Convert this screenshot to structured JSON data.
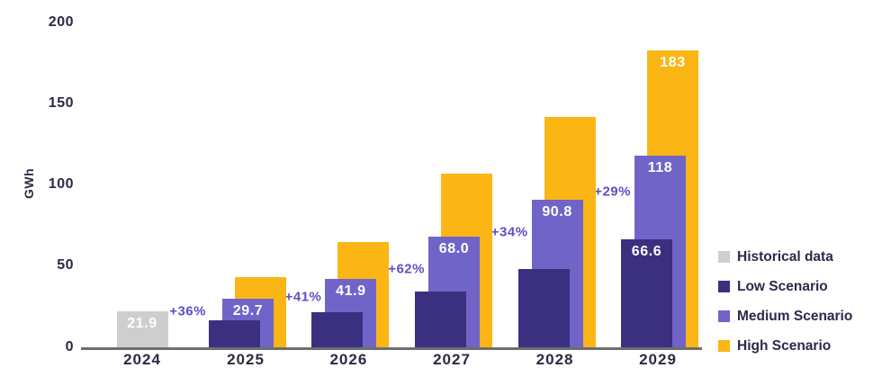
{
  "chart_data": {
    "type": "bar",
    "title": "",
    "ylabel": "GWh",
    "xlabel": "",
    "ylim": [
      0,
      200
    ],
    "yticks": [
      0,
      50,
      100,
      150,
      200
    ],
    "grid": false,
    "legend_position": "bottom-right",
    "categories": [
      "2024",
      "2025",
      "2026",
      "2027",
      "2028",
      "2029"
    ],
    "series": [
      {
        "name": "Historical data",
        "color": "#cecece",
        "values": [
          21.9,
          null,
          null,
          null,
          null,
          null
        ],
        "labels": [
          "21.9",
          null,
          null,
          null,
          null,
          null
        ]
      },
      {
        "name": "Low Scenario",
        "color": "#3b2f7f",
        "values": [
          null,
          16.5,
          21.5,
          34.5,
          48,
          66.6
        ],
        "labels": [
          null,
          null,
          null,
          null,
          null,
          "66.6"
        ]
      },
      {
        "name": "Medium Scenario",
        "color": "#7164c9",
        "values": [
          null,
          29.7,
          41.9,
          68.0,
          90.8,
          118
        ],
        "labels": [
          null,
          "29.7",
          "41.9",
          "68.0",
          "90.8",
          "118"
        ]
      },
      {
        "name": "High Scenario",
        "color": "#fbb615",
        "values": [
          null,
          43,
          65,
          107,
          142,
          183
        ],
        "labels": [
          null,
          null,
          null,
          null,
          null,
          "183"
        ]
      }
    ],
    "annotations": [
      {
        "text": "+36%",
        "category": "2025",
        "y": 22
      },
      {
        "text": "+41%",
        "category": "2026",
        "y": 31
      },
      {
        "text": "+62%",
        "category": "2027",
        "y": 48
      },
      {
        "text": "+34%",
        "category": "2028",
        "y": 71
      },
      {
        "text": "+29%",
        "category": "2029",
        "y": 96
      }
    ]
  },
  "colors": {
    "axis_line": "#6d6e71",
    "tick_label": "#2b2a42",
    "year_label": "#2b2a42",
    "annotation_text": "#5b50c4",
    "bar_value_label": "#ffffff",
    "legend_text": "#2b2a4a",
    "background": "#ffffff"
  }
}
